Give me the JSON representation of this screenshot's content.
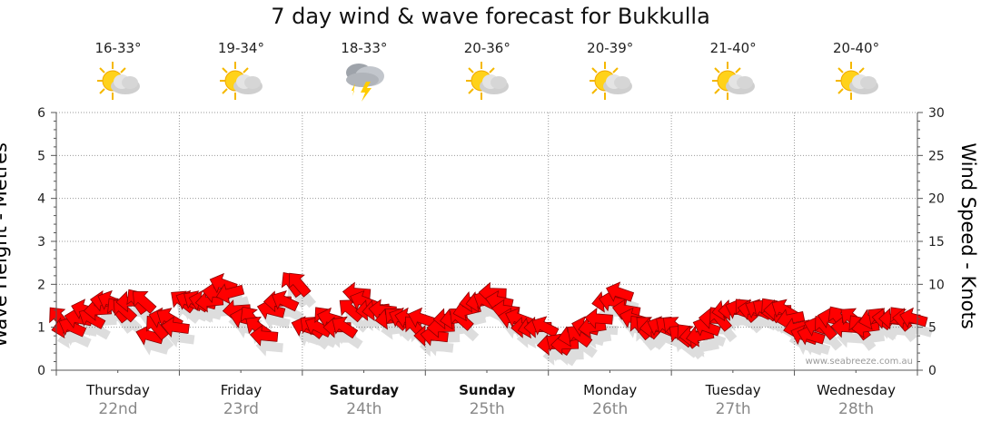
{
  "title": "7 day wind & wave forecast for Bukkulla",
  "watermark": "www.seabreeze.com.au",
  "colors": {
    "arrow": "#ff0000",
    "arrow_stroke": "#8b0000",
    "grid": "#999999",
    "plot_bg": "#ffffff"
  },
  "days": [
    {
      "name": "Thursday",
      "date": "22nd",
      "temp": "16-33°",
      "icon": "partly-sunny-icon",
      "bold": false
    },
    {
      "name": "Friday",
      "date": "23rd",
      "temp": "19-34°",
      "icon": "partly-sunny-icon",
      "bold": false
    },
    {
      "name": "Saturday",
      "date": "24th",
      "temp": "18-33°",
      "icon": "thunderstorm-icon",
      "bold": true
    },
    {
      "name": "Sunday",
      "date": "25th",
      "temp": "20-36°",
      "icon": "partly-sunny-icon",
      "bold": true
    },
    {
      "name": "Monday",
      "date": "26th",
      "temp": "20-39°",
      "icon": "partly-sunny-icon",
      "bold": false
    },
    {
      "name": "Tuesday",
      "date": "27th",
      "temp": "21-40°",
      "icon": "partly-sunny-icon",
      "bold": false
    },
    {
      "name": "Wednesday",
      "date": "28th",
      "temp": "20-40°",
      "icon": "partly-sunny-icon",
      "bold": false
    }
  ],
  "chart_data": {
    "type": "line",
    "title": "7 day wind & wave forecast for Bukkulla",
    "ylabel_left": "Wave Height - Metres",
    "ylabel_right": "Wind Speed - Knots",
    "ylim_left": [
      0,
      6
    ],
    "ylim_right": [
      0,
      30
    ],
    "yticks_left": [
      "0",
      "1",
      "2",
      "3",
      "4",
      "5",
      "6"
    ],
    "yticks_right": [
      "0",
      "5",
      "10",
      "15",
      "20",
      "25",
      "30"
    ],
    "grid": true,
    "series": [
      {
        "unit": "knots",
        "marker": "arrow",
        "values_per_day": [
          [
            6,
            5,
            5,
            6,
            7,
            6,
            7,
            8,
            8,
            7,
            7,
            8,
            8,
            8,
            4,
            5,
            6,
            6,
            5
          ],
          [
            8,
            8,
            8,
            8,
            8,
            9,
            10,
            9,
            7,
            6,
            6,
            5,
            4,
            7,
            8,
            8,
            10,
            10
          ],
          [
            5,
            5,
            5,
            6,
            6,
            5,
            5,
            7,
            9,
            8,
            7,
            7,
            7,
            6,
            6,
            6,
            6,
            5,
            6
          ],
          [
            4,
            4,
            5,
            6,
            6,
            6,
            7,
            8,
            8,
            8,
            9,
            8,
            7,
            6,
            6,
            5,
            5,
            5,
            5
          ],
          [
            3,
            3,
            3,
            4,
            4,
            5,
            5,
            6,
            8,
            8,
            9,
            7,
            6,
            5,
            5,
            5,
            5,
            5
          ],
          [
            5,
            4,
            4,
            4,
            4,
            5,
            6,
            6,
            7,
            7,
            7,
            7,
            7,
            7,
            7,
            7,
            7,
            7,
            6
          ],
          [
            5,
            4,
            4,
            5,
            5,
            6,
            6,
            5,
            6,
            5,
            5,
            6,
            6,
            6,
            6,
            6,
            6,
            6
          ]
        ]
      }
    ]
  }
}
